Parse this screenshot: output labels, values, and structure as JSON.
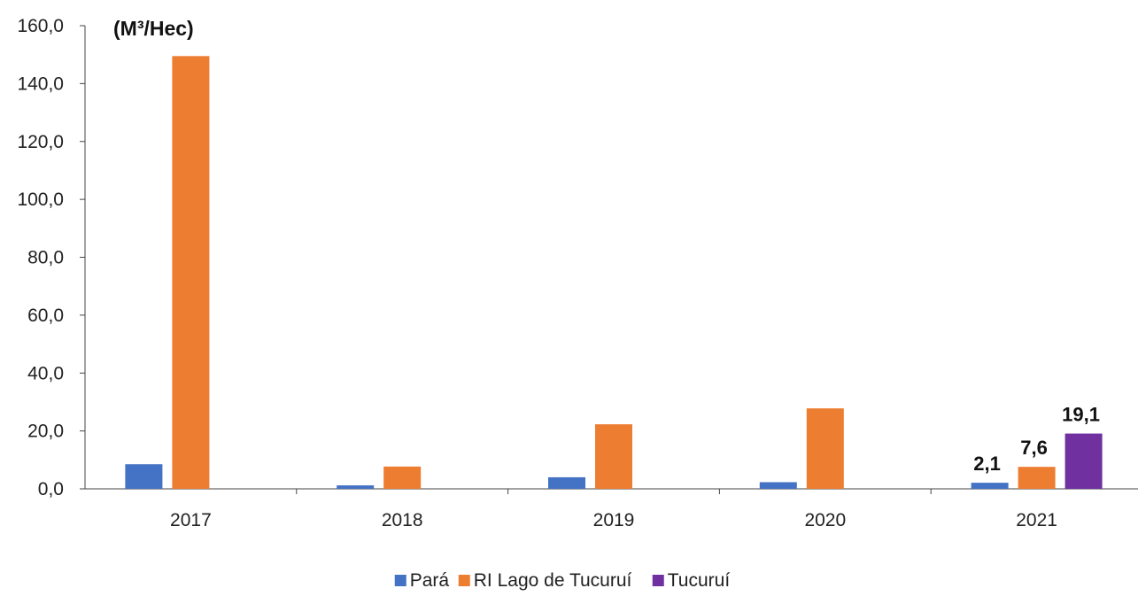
{
  "chart_data": {
    "type": "bar",
    "unit_label": "(M³/Hec)",
    "categories": [
      "2017",
      "2018",
      "2019",
      "2020",
      "2021"
    ],
    "series": [
      {
        "name": "Pará",
        "color": "#4472C4",
        "values": [
          8.5,
          1.2,
          4.0,
          2.3,
          2.1
        ]
      },
      {
        "name": "RI Lago de Tucuruí",
        "color": "#ED7D31",
        "values": [
          149.5,
          7.7,
          22.3,
          27.8,
          7.6
        ]
      },
      {
        "name": "Tucuruí",
        "color": "#7030A0",
        "values": [
          null,
          null,
          null,
          null,
          19.1
        ]
      }
    ],
    "data_labels": [
      {
        "category": "2021",
        "series": "Pará",
        "text": "2,1"
      },
      {
        "category": "2021",
        "series": "RI Lago de Tucuruí",
        "text": "7,6"
      },
      {
        "category": "2021",
        "series": "Tucuruí",
        "text": "19,1"
      }
    ],
    "y_ticks": [
      "0,0",
      "20,0",
      "40,0",
      "60,0",
      "80,0",
      "100,0",
      "120,0",
      "140,0",
      "160,0"
    ],
    "ylim": [
      0,
      160
    ],
    "grid": false,
    "legend_position": "bottom"
  }
}
